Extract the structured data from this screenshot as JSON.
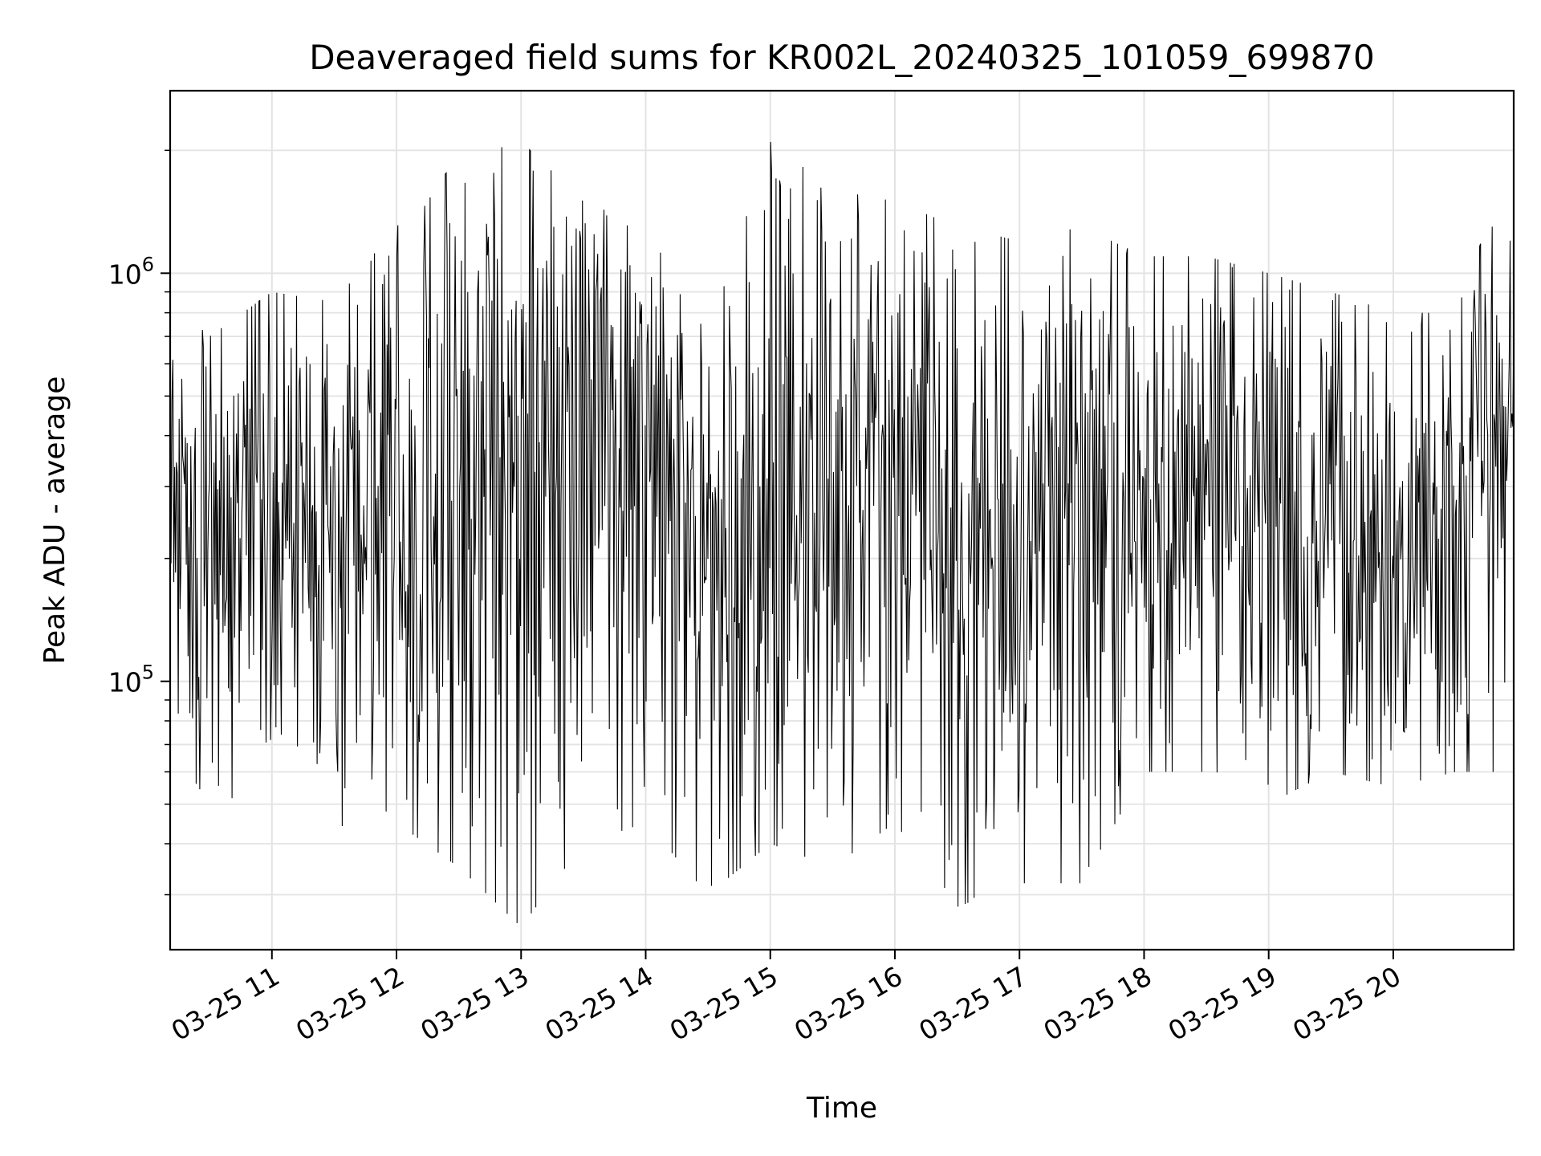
{
  "chart_data": {
    "type": "line",
    "title": "Deaveraged field sums for KR002L_20240325_101059_699870",
    "xlabel": "Time",
    "ylabel": "Peak ADU - average",
    "y_scale": "log",
    "xlim": [
      "2024-03-25T10:11:00",
      "2024-03-25T20:58:00"
    ],
    "ylim": [
      22000,
      2800000
    ],
    "x_ticks": [
      {
        "value": "2024-03-25T11:00:00",
        "label": "03-25 11"
      },
      {
        "value": "2024-03-25T12:00:00",
        "label": "03-25 12"
      },
      {
        "value": "2024-03-25T13:00:00",
        "label": "03-25 13"
      },
      {
        "value": "2024-03-25T14:00:00",
        "label": "03-25 14"
      },
      {
        "value": "2024-03-25T15:00:00",
        "label": "03-25 15"
      },
      {
        "value": "2024-03-25T16:00:00",
        "label": "03-25 16"
      },
      {
        "value": "2024-03-25T17:00:00",
        "label": "03-25 17"
      },
      {
        "value": "2024-03-25T18:00:00",
        "label": "03-25 18"
      },
      {
        "value": "2024-03-25T19:00:00",
        "label": "03-25 19"
      },
      {
        "value": "2024-03-25T20:00:00",
        "label": "03-25 20"
      }
    ],
    "y_major_ticks": [
      {
        "value": 100000,
        "base": "10",
        "exp": "5"
      },
      {
        "value": 1000000,
        "base": "10",
        "exp": "6"
      }
    ],
    "y_minor_ticks": [
      30000,
      40000,
      50000,
      60000,
      70000,
      80000,
      90000,
      200000,
      300000,
      400000,
      500000,
      600000,
      700000,
      800000,
      900000,
      2000000
    ],
    "grid": true,
    "series": [
      {
        "color": "#000000",
        "x": [
          "2024-03-25T10:11:00",
          "2024-03-25T10:30:00",
          "2024-03-25T11:00:00",
          "2024-03-25T11:30:00",
          "2024-03-25T12:00:00",
          "2024-03-25T12:30:00",
          "2024-03-25T13:00:00",
          "2024-03-25T13:30:00",
          "2024-03-25T14:00:00",
          "2024-03-25T14:30:00",
          "2024-03-25T15:00:00",
          "2024-03-25T15:30:00",
          "2024-03-25T16:00:00",
          "2024-03-25T16:30:00",
          "2024-03-25T17:00:00",
          "2024-03-25T17:30:00",
          "2024-03-25T18:00:00",
          "2024-03-25T18:30:00",
          "2024-03-25T19:00:00",
          "2024-03-25T19:30:00",
          "2024-03-25T20:00:00",
          "2024-03-25T20:30:00",
          "2024-03-25T20:45:00",
          "2024-03-25T20:58:00"
        ],
        "y_median": [
          350000,
          230000,
          240000,
          220000,
          300000,
          450000,
          330000,
          380000,
          480000,
          180000,
          260000,
          280000,
          380000,
          200000,
          260000,
          300000,
          280000,
          260000,
          260000,
          240000,
          230000,
          240000,
          520000,
          500000
        ],
        "y_high": [
          900000,
          700000,
          900000,
          850000,
          1300000,
          1900000,
          2100000,
          1500000,
          1300000,
          700000,
          2100000,
          1600000,
          1500000,
          1300000,
          1200000,
          1300000,
          1100000,
          1100000,
          1000000,
          900000,
          800000,
          800000,
          1300000,
          1300000
        ],
        "y_low": [
          70000,
          50000,
          55000,
          40000,
          45000,
          35000,
          25000,
          40000,
          45000,
          30000,
          40000,
          35000,
          45000,
          28000,
          32000,
          32000,
          60000,
          60000,
          50000,
          60000,
          55000,
          60000,
          60000,
          60000
        ],
        "n_points": 1500
      }
    ]
  }
}
